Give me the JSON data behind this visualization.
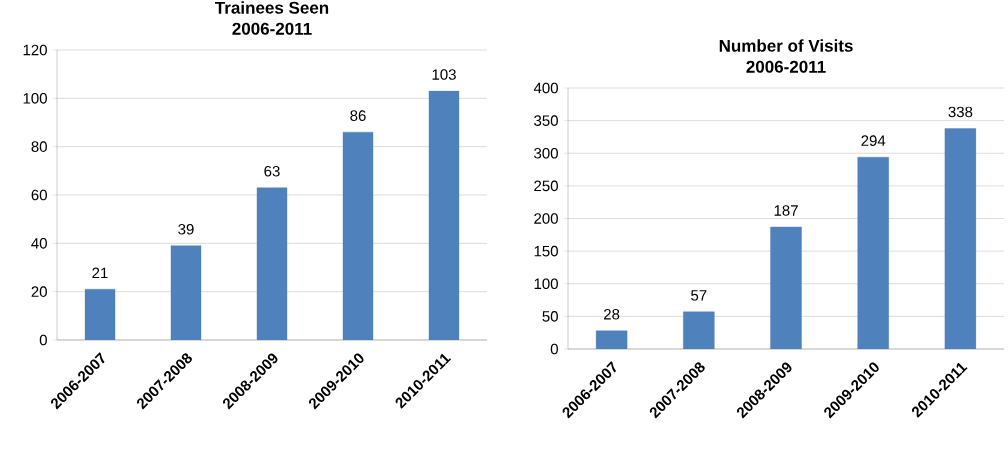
{
  "chart_data": [
    {
      "type": "bar",
      "title": "Trainees Seen",
      "subtitle": "2006-2011",
      "categories": [
        "2006-2007",
        "2007-2008",
        "2008-2009",
        "2009-2010",
        "2010-2011"
      ],
      "values": [
        21,
        39,
        63,
        86,
        103
      ],
      "color": "#4f81bd",
      "ylim": [
        0,
        120
      ],
      "yticks": [
        0,
        20,
        40,
        60,
        80,
        100,
        120
      ],
      "grid": "y",
      "data_labels": true
    },
    {
      "type": "bar",
      "title": "Number of Visits",
      "subtitle": "2006-2011",
      "categories": [
        "2006-2007",
        "2007-2008",
        "2008-2009",
        "2009-2010",
        "2010-2011"
      ],
      "values": [
        28,
        57,
        187,
        294,
        338
      ],
      "color": "#4f81bd",
      "ylim": [
        0,
        400
      ],
      "yticks": [
        0,
        50,
        100,
        150,
        200,
        250,
        300,
        350,
        400
      ],
      "grid": "y",
      "data_labels": true
    }
  ]
}
